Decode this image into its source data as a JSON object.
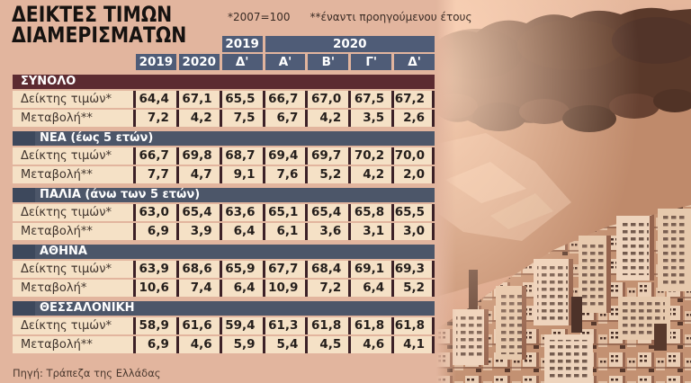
{
  "title": {
    "line1": "ΔΕΙΚΤΕΣ ΤΙΜΩΝ",
    "line2": "ΔΙΑΜΕΡΙΣΜΑΤΩΝ"
  },
  "notes": {
    "base": "*2007=100",
    "yoy": "**έναντι προηγούμενου έτους"
  },
  "header": {
    "band_2019": "2019",
    "band_2020": "2020",
    "columns": [
      "2019",
      "2020",
      "Δ'",
      "Α'",
      "Β'",
      "Γ'",
      "Δ'"
    ]
  },
  "source": "Πηγή: Τράπεζα της Ελλάδας",
  "colors": {
    "page_bg": "#e2b59e",
    "row_bg": "#f5e1c6",
    "section_maroon": "#5c2b31",
    "section_slate": "#4c5669",
    "column_header": "#4f5c77",
    "cell_border": "#3c2127",
    "photo_tint": "#d79c80"
  },
  "chart_data": {
    "type": "table",
    "title": "ΔΕΙΚΤΕΣ ΤΙΜΩΝ ΔΙΑΜΕΡΙΣΜΑΤΩΝ",
    "column_headers": [
      "2019",
      "2020",
      "2019 Δ'",
      "2020 Α'",
      "2020 Β'",
      "2020 Γ'",
      "2020 Δ'"
    ],
    "notes": [
      "*2007=100",
      "**έναντι προηγούμενου έτους"
    ],
    "source": "Πηγή: Τράπεζα της Ελλάδας",
    "sections": [
      {
        "title": "ΣΥΝΟΛΟ",
        "theme": "maroon",
        "rows": [
          {
            "label": "Δείκτης τιμών*",
            "display": [
              "64,4",
              "67,1",
              "65,5",
              "66,7",
              "67,0",
              "67,5",
              "67,2"
            ],
            "values": [
              64.4,
              67.1,
              65.5,
              66.7,
              67.0,
              67.5,
              67.2
            ]
          },
          {
            "label": "Μεταβολή**",
            "display": [
              "7,2",
              "4,2",
              "7,5",
              "6,7",
              "4,2",
              "3,5",
              "2,6"
            ],
            "values": [
              7.2,
              4.2,
              7.5,
              6.7,
              4.2,
              3.5,
              2.6
            ]
          }
        ]
      },
      {
        "title": "ΝΕΑ (έως 5 ετών)",
        "theme": "slate",
        "rows": [
          {
            "label": "Δείκτης τιμών*",
            "display": [
              "66,7",
              "69,8",
              "68,7",
              "69,4",
              "69,7",
              "70,2",
              "70,0"
            ],
            "values": [
              66.7,
              69.8,
              68.7,
              69.4,
              69.7,
              70.2,
              70.0
            ]
          },
          {
            "label": "Μεταβολή**",
            "display": [
              "7,7",
              "4,7",
              "9,1",
              "7,6",
              "5,2",
              "4,2",
              "2,0"
            ],
            "values": [
              7.7,
              4.7,
              9.1,
              7.6,
              5.2,
              4.2,
              2.0
            ]
          }
        ]
      },
      {
        "title": "ΠΑΛΙΑ (άνω των 5 ετών)",
        "theme": "slate",
        "rows": [
          {
            "label": "Δείκτης τιμών*",
            "display": [
              "63,0",
              "65,4",
              "63,6",
              "65,1",
              "65,4",
              "65,8",
              "65,5"
            ],
            "values": [
              63.0,
              65.4,
              63.6,
              65.1,
              65.4,
              65.8,
              65.5
            ]
          },
          {
            "label": "Μεταβολή**",
            "display": [
              "6,9",
              "3,9",
              "6,4",
              "6,1",
              "3,6",
              "3,1",
              "3,0"
            ],
            "values": [
              6.9,
              3.9,
              6.4,
              6.1,
              3.6,
              3.1,
              3.0
            ]
          }
        ]
      },
      {
        "title": "ΑΘΗΝΑ",
        "theme": "slate",
        "rows": [
          {
            "label": "Δείκτης τιμών*",
            "display": [
              "63,9",
              "68,6",
              "65,9",
              "67,7",
              "68,4",
              "69,1",
              "69,3"
            ],
            "values": [
              63.9,
              68.6,
              65.9,
              67.7,
              68.4,
              69.1,
              69.3
            ]
          },
          {
            "label": "Μεταβολή*",
            "display": [
              "10,6",
              "7,4",
              "6,4",
              "10,9",
              "7,2",
              "6,4",
              "5,2"
            ],
            "values": [
              10.6,
              7.4,
              6.4,
              10.9,
              7.2,
              6.4,
              5.2
            ]
          }
        ]
      },
      {
        "title": "ΘΕΣΣΑΛΟΝΙΚΗ",
        "theme": "slate",
        "rows": [
          {
            "label": "Δείκτης τιμών*",
            "display": [
              "58,9",
              "61,6",
              "59,4",
              "61,3",
              "61,8",
              "61,8",
              "61,8"
            ],
            "values": [
              58.9,
              61.6,
              59.4,
              61.3,
              61.8,
              61.8,
              61.8
            ]
          },
          {
            "label": "Μεταβολή**",
            "display": [
              "6,9",
              "4,6",
              "5,9",
              "5,4",
              "4,5",
              "4,6",
              "4,1"
            ],
            "values": [
              6.9,
              4.6,
              5.9,
              5.4,
              4.5,
              4.6,
              4.1
            ]
          }
        ]
      }
    ]
  }
}
